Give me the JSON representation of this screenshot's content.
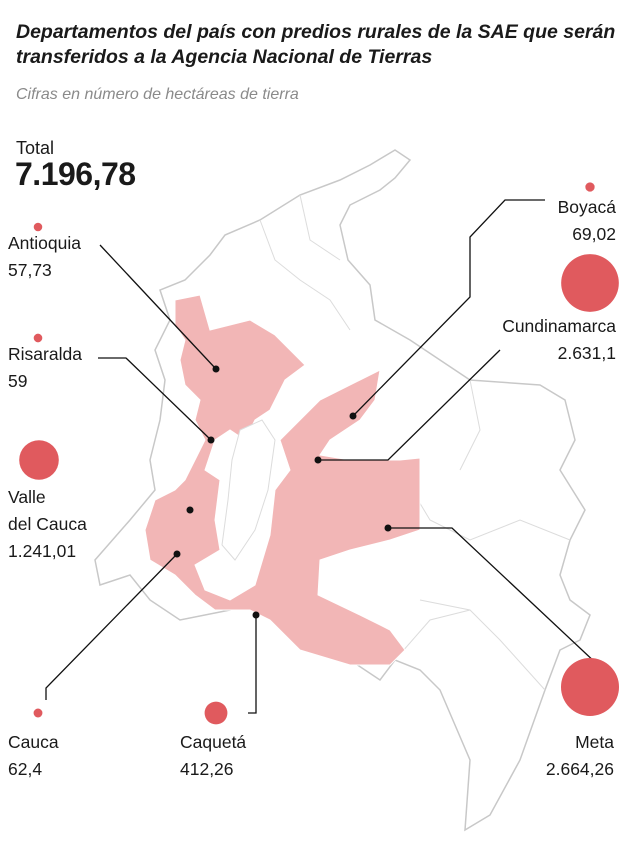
{
  "title": "Departamentos del país con predios rurales de la SAE que serán transferidos a la Agencia Nacional de Tierras",
  "subtitle": "Cifras en número de hectáreas de tierra",
  "total": {
    "label": "Total",
    "value": 7196.78,
    "value_label": "7.196,78"
  },
  "departments": [
    {
      "name": "Antioquia",
      "value": 57.73,
      "label": "57,73"
    },
    {
      "name": "Risaralda",
      "value": 59,
      "label": "59"
    },
    {
      "name": "Valle\ndel Cauca",
      "value": 1241.01,
      "label": "1.241,01"
    },
    {
      "name": "Cauca",
      "value": 62.4,
      "label": "62,4"
    },
    {
      "name": "Caquetá",
      "value": 412.26,
      "label": "412,26"
    },
    {
      "name": "Meta",
      "value": 2664.26,
      "label": "2.664,26"
    },
    {
      "name": "Cundinamarca",
      "value": 2631.1,
      "label": "2.631,1"
    },
    {
      "name": "Boyacá",
      "value": 69.02,
      "label": "69,02"
    }
  ]
}
